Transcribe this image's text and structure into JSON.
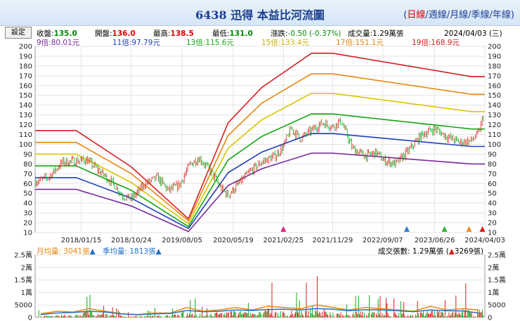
{
  "header": {
    "title": "6438 迅得 本益比河流圖",
    "periods": [
      "日線",
      "週線",
      "月線",
      "季線",
      "年線"
    ],
    "active_period": "日線"
  },
  "toolbar": {
    "settings_label": "設定"
  },
  "quote": {
    "items": [
      {
        "label": "收盤:",
        "value": "135.0",
        "color": "#008800"
      },
      {
        "label": "開盤:",
        "value": "136.0",
        "color": "#dd0000"
      },
      {
        "label": "最高:",
        "value": "138.5",
        "color": "#dd0000"
      },
      {
        "label": "最低:",
        "value": "131.0",
        "color": "#008800"
      },
      {
        "label": "漲跌:",
        "value": "-0.50 (-0.37%)",
        "color": "#008800"
      },
      {
        "label": "成交量:",
        "value": "1.29萬張",
        "color": "#000000"
      }
    ],
    "date": "2024/04/03 (三)"
  },
  "pe_bands": [
    {
      "label": "9倍:80.01元",
      "color": "#7a2a9e"
    },
    {
      "label": "11倍:97.79元",
      "color": "#1d3fbf"
    },
    {
      "label": "13倍:115.6元",
      "color": "#11a811"
    },
    {
      "label": "15倍:133.4元",
      "color": "#d7c400"
    },
    {
      "label": "17倍:151.1元",
      "color": "#e8870f"
    },
    {
      "label": "19倍:168.9元",
      "color": "#d81e1e"
    }
  ],
  "volume_legend": {
    "monthly_label": "月均量: 3041張",
    "monthly_color": "#e8870f",
    "quarterly_label": "季均量: 1813張",
    "quarterly_color": "#2272c8",
    "volume_label": "成交張數: 1.29萬張 (",
    "volume_change": "3269張)",
    "triangle": "▲"
  },
  "chart_data": [
    {
      "type": "line",
      "title": "本益比河流圖",
      "x_ticks": [
        "2018/01/15",
        "2018/10/24",
        "2019/08/05",
        "2020/05/19",
        "2021/02/25",
        "2021/11/29",
        "2022/09/07",
        "2023/06/26",
        "2024/04/03"
      ],
      "ylim": [
        10,
        200
      ],
      "y_ticks": [
        10,
        20,
        30,
        40,
        50,
        60,
        70,
        80,
        90,
        100,
        110,
        120,
        130,
        140,
        150,
        160,
        170,
        180,
        190,
        200
      ],
      "grid": true,
      "x": [
        "2017/05/01",
        "2017/12/18",
        "2018/10/24",
        "2019/09/10",
        "2020/04/20",
        "2020/10/26",
        "2021/08/02",
        "2021/11/29",
        "2024/01/20",
        "2024/04/03"
      ],
      "series": [
        {
          "name": "19倍",
          "color": "#d81e1e",
          "values": [
            114,
            114,
            77,
            24,
            122,
            158,
            193,
            193,
            169,
            169
          ]
        },
        {
          "name": "17倍",
          "color": "#e8870f",
          "values": [
            102,
            102,
            70,
            22,
            109,
            142,
            172,
            172,
            151,
            151
          ]
        },
        {
          "name": "15倍",
          "color": "#d7c400",
          "values": [
            90,
            90,
            61,
            19,
            96,
            125,
            152,
            152,
            133.4,
            133.4
          ]
        },
        {
          "name": "13倍",
          "color": "#11a811",
          "values": [
            78,
            78,
            53,
            16,
            84,
            108,
            131,
            131,
            115.6,
            115.6
          ]
        },
        {
          "name": "11倍",
          "color": "#1d3fbf",
          "values": [
            66,
            66,
            45,
            14,
            71,
            92,
            111,
            111,
            97.8,
            97.8
          ]
        },
        {
          "name": "9倍",
          "color": "#7a2a9e",
          "values": [
            54,
            54,
            37,
            11,
            58,
            75,
            91,
            91,
            80,
            80
          ]
        }
      ],
      "price": {
        "x": [
          "2017/05/01",
          "2017/07/15",
          "2017/10/01",
          "2017/12/18",
          "2018/02/15",
          "2018/05/01",
          "2018/07/15",
          "2018/09/01",
          "2018/10/24",
          "2019/01/10",
          "2019/03/20",
          "2019/05/20",
          "2019/07/20",
          "2019/09/20",
          "2019/11/10",
          "2020/01/15",
          "2020/03/10",
          "2020/04/20",
          "2020/06/20",
          "2020/08/20",
          "2020/10/26",
          "2021/01/10",
          "2021/02/25",
          "2021/04/10",
          "2021/06/01",
          "2021/08/02",
          "2021/10/01",
          "2021/11/29",
          "2022/01/15",
          "2022/03/20",
          "2022/06/01",
          "2022/08/01",
          "2022/09/07",
          "2022/11/20",
          "2023/02/01",
          "2023/04/15",
          "2023/06/26",
          "2023/09/01",
          "2023/11/15",
          "2024/01/20",
          "2024/03/01",
          "2024/04/03"
        ],
        "close": [
          62,
          66,
          82,
          83,
          84,
          72,
          60,
          48,
          44,
          60,
          66,
          53,
          58,
          80,
          86,
          72,
          55,
          48,
          60,
          72,
          82,
          88,
          98,
          116,
          106,
          114,
          122,
          118,
          124,
          96,
          88,
          92,
          84,
          80,
          94,
          110,
          116,
          108,
          102,
          104,
          112,
          135
        ]
      },
      "markers": [
        {
          "x": "2021/02/25",
          "color": "#e0208a"
        },
        {
          "x": "2023/01/20",
          "color": "#2a7ad8"
        },
        {
          "x": "2023/08/20",
          "color": "#2cb02c"
        },
        {
          "x": "2024/01/05",
          "color": "#f08a1a"
        },
        {
          "x": "2024/03/20",
          "color": "#d81e1e"
        }
      ]
    },
    {
      "type": "bar",
      "title": "成交張數",
      "ylim": [
        0,
        25000
      ],
      "y_ticks": [
        "0",
        "5000",
        "1萬",
        "1.5萬",
        "2萬",
        "2.5萬"
      ],
      "grid": true,
      "x": [
        "2017/06/01",
        "2017/09/01",
        "2017/12/01",
        "2018/03/01",
        "2018/06/01",
        "2018/09/01",
        "2018/12/01",
        "2019/03/01",
        "2019/06/01",
        "2019/09/01",
        "2019/12/01",
        "2020/03/01",
        "2020/06/01",
        "2020/09/01",
        "2020/12/01",
        "2021/03/01",
        "2021/06/01",
        "2021/09/01",
        "2021/12/01",
        "2022/03/01",
        "2022/06/01",
        "2022/09/01",
        "2022/12/01",
        "2023/03/01",
        "2023/06/01",
        "2023/09/01",
        "2023/12/01",
        "2024/03/01"
      ],
      "series": [
        {
          "name": "成交張數",
          "values": [
            3000,
            5000,
            4500,
            13500,
            6000,
            3000,
            2500,
            4000,
            3500,
            12000,
            5000,
            9000,
            12000,
            7000,
            15000,
            12000,
            10000,
            21000,
            10000,
            7000,
            12000,
            9000,
            8000,
            6000,
            16000,
            8000,
            14000,
            12900
          ]
        },
        {
          "name": "月均量",
          "color": "#e8870f",
          "values": [
            1500,
            2500,
            2200,
            3500,
            2500,
            1500,
            1200,
            1800,
            1800,
            4000,
            2500,
            3000,
            4000,
            3000,
            4500,
            4000,
            3500,
            5000,
            4000,
            3000,
            4000,
            3500,
            3000,
            2500,
            4500,
            3000,
            3500,
            3041
          ]
        },
        {
          "name": "季均量",
          "color": "#2272c8",
          "values": [
            1200,
            1800,
            2000,
            2500,
            2200,
            1400,
            1100,
            1500,
            1600,
            2800,
            2300,
            2500,
            3000,
            2800,
            3200,
            3300,
            3000,
            3600,
            3300,
            2700,
            3100,
            3000,
            2700,
            2300,
            3000,
            2700,
            2600,
            1813
          ]
        }
      ]
    }
  ]
}
